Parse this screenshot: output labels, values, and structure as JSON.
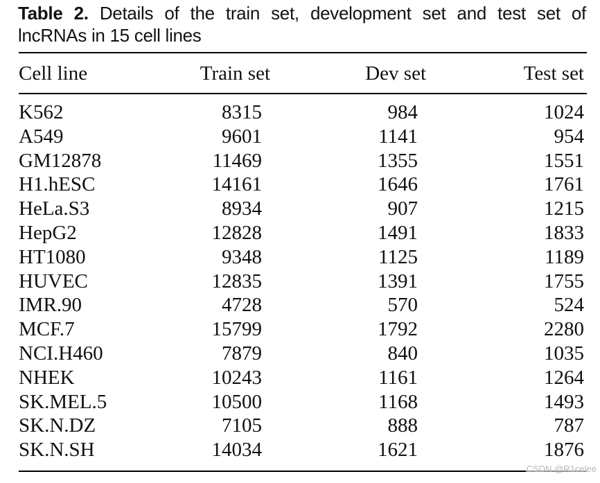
{
  "caption": {
    "label": "Table 2.",
    "line1_rest": "Details of the train set, development set and test set of",
    "line2": "lncRNAs in 15 cell lines"
  },
  "table": {
    "columns": [
      "Cell line",
      "Train set",
      "Dev set",
      "Test set"
    ],
    "rows": [
      {
        "cell_line": "K562",
        "train": 8315,
        "dev": 984,
        "test": 1024
      },
      {
        "cell_line": "A549",
        "train": 9601,
        "dev": 1141,
        "test": 954
      },
      {
        "cell_line": "GM12878",
        "train": 11469,
        "dev": 1355,
        "test": 1551
      },
      {
        "cell_line": "H1.hESC",
        "train": 14161,
        "dev": 1646,
        "test": 1761
      },
      {
        "cell_line": "HeLa.S3",
        "train": 8934,
        "dev": 907,
        "test": 1215
      },
      {
        "cell_line": "HepG2",
        "train": 12828,
        "dev": 1491,
        "test": 1833
      },
      {
        "cell_line": "HT1080",
        "train": 9348,
        "dev": 1125,
        "test": 1189
      },
      {
        "cell_line": "HUVEC",
        "train": 12835,
        "dev": 1391,
        "test": 1755
      },
      {
        "cell_line": "IMR.90",
        "train": 4728,
        "dev": 570,
        "test": 524
      },
      {
        "cell_line": "MCF.7",
        "train": 15799,
        "dev": 1792,
        "test": 2280
      },
      {
        "cell_line": "NCI.H460",
        "train": 7879,
        "dev": 840,
        "test": 1035
      },
      {
        "cell_line": "NHEK",
        "train": 10243,
        "dev": 1161,
        "test": 1264
      },
      {
        "cell_line": "SK.MEL.5",
        "train": 10500,
        "dev": 1168,
        "test": 1493
      },
      {
        "cell_line": "SK.N.DZ",
        "train": 7105,
        "dev": 888,
        "test": 787
      },
      {
        "cell_line": "SK.N.SH",
        "train": 14034,
        "dev": 1621,
        "test": 1876
      }
    ]
  },
  "watermark": "CSDN @R1celee",
  "colors": {
    "text": "#0e0e0e",
    "rule": "#000000",
    "watermark": "#b4b7ba",
    "background": "#ffffff"
  }
}
